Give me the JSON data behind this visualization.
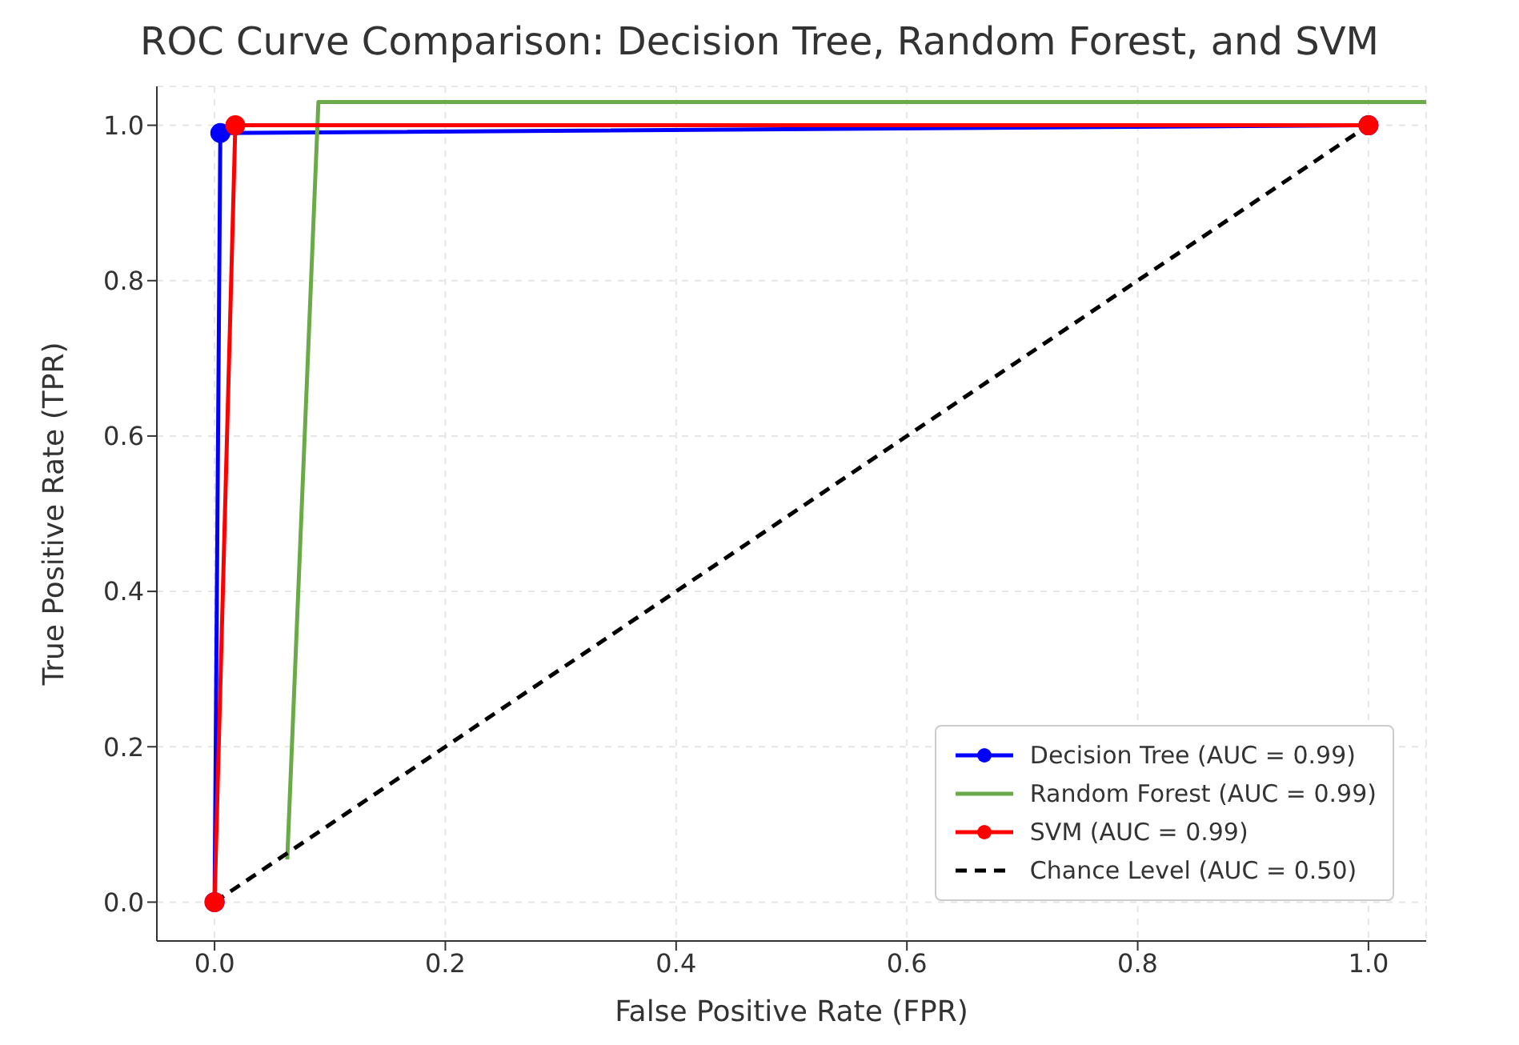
{
  "chart_data": {
    "type": "line",
    "title": "ROC Curve Comparison: Decision Tree, Random Forest, and SVM",
    "xlabel": "False Positive Rate (FPR)",
    "ylabel": "True Positive Rate (TPR)",
    "xlim": [
      -0.05,
      1.05
    ],
    "ylim": [
      -0.05,
      1.05
    ],
    "xticks": [
      {
        "value": 0,
        "label": "0.0"
      },
      {
        "value": 0.2,
        "label": "0.2"
      },
      {
        "value": 0.4,
        "label": "0.4"
      },
      {
        "value": 0.6,
        "label": "0.6"
      },
      {
        "value": 0.8,
        "label": "0.8"
      },
      {
        "value": 1,
        "label": "1.0"
      }
    ],
    "yticks": [
      {
        "value": 0,
        "label": "0.0"
      },
      {
        "value": 0.2,
        "label": "0.2"
      },
      {
        "value": 0.4,
        "label": "0.4"
      },
      {
        "value": 0.6,
        "label": "0.6"
      },
      {
        "value": 0.8,
        "label": "0.8"
      },
      {
        "value": 1,
        "label": "1.0"
      }
    ],
    "grid": true,
    "legend": "bottom right",
    "series": [
      {
        "name": "Decision Tree (AUC = 0.99)",
        "color": "#0000ff",
        "marker": "circle",
        "x": [
          0,
          0.005,
          1
        ],
        "values": [
          0,
          0.99,
          1
        ]
      },
      {
        "name": "Random Forest (AUC = 0.99)",
        "color": "#6aaa48",
        "marker": "none",
        "x": [
          0.063,
          0.09,
          1.05
        ],
        "values": [
          0.055,
          1.03,
          1.03
        ]
      },
      {
        "name": "SVM (AUC = 0.99)",
        "color": "#ff0000",
        "marker": "circle",
        "x": [
          0,
          0.018,
          1
        ],
        "values": [
          0,
          1,
          1
        ]
      },
      {
        "name": "Chance Level (AUC = 0.50)",
        "color": "#000000",
        "marker": "none",
        "line_style": "dashed",
        "x": [
          0,
          1
        ],
        "values": [
          0,
          1
        ]
      }
    ]
  }
}
